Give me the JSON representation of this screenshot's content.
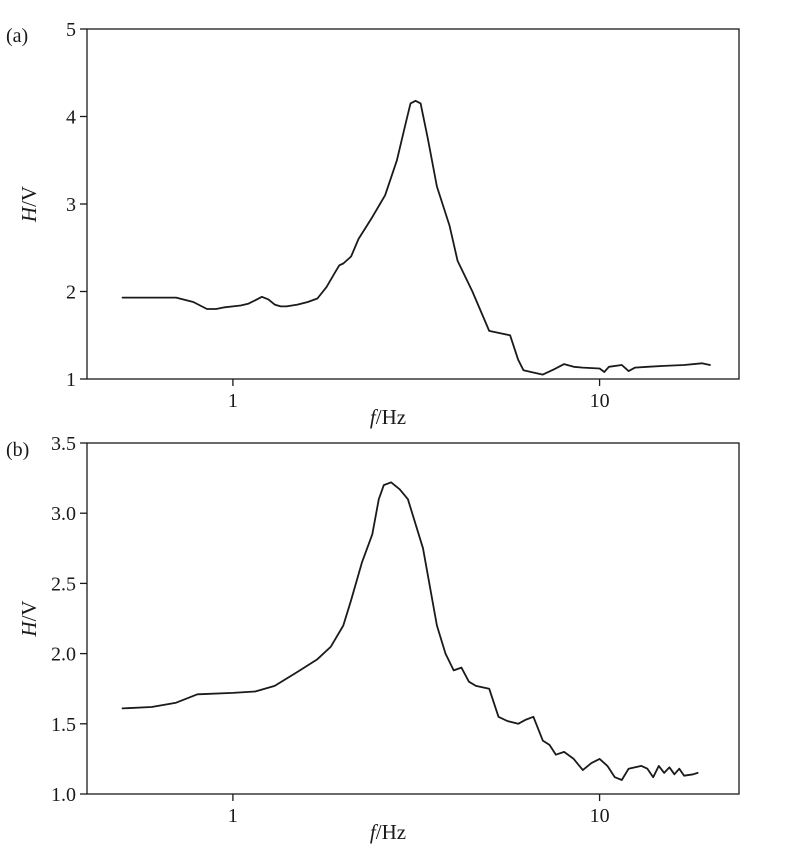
{
  "chart_data": [
    {
      "type": "line",
      "panel_label": "(a)",
      "xlabel_italic": "f",
      "xlabel_rest": "/Hz",
      "ylabel_italic": "H",
      "ylabel_rest": "/V",
      "xscale": "log",
      "xlim": [
        0.4,
        24
      ],
      "ylim": [
        1,
        5
      ],
      "xticks": [
        1,
        10
      ],
      "xtick_labels": [
        "1",
        "10"
      ],
      "yticks": [
        1,
        2,
        3,
        4,
        5
      ],
      "ytick_labels": [
        "1",
        "2",
        "3",
        "4",
        "5"
      ],
      "grid": false,
      "series": [
        {
          "x": [
            0.5,
            0.6,
            0.7,
            0.78,
            0.85,
            0.9,
            0.95,
            1.0,
            1.05,
            1.1,
            1.15,
            1.2,
            1.25,
            1.3,
            1.35,
            1.4,
            1.5,
            1.6,
            1.7,
            1.8,
            1.9,
            1.95,
            2.0,
            2.1,
            2.2,
            2.4,
            2.6,
            2.8,
            2.95,
            3.05,
            3.15,
            3.25,
            3.4,
            3.6,
            3.9,
            4.1,
            4.5,
            5.0,
            5.4,
            5.7,
            6.0,
            6.2,
            6.5,
            7.0,
            7.5,
            8.0,
            8.5,
            9.0,
            10.0,
            10.3,
            10.6,
            11.5,
            12.0,
            12.5,
            13.5,
            15.0,
            17.0,
            19.0,
            20.0
          ],
          "y": [
            1.93,
            1.93,
            1.93,
            1.88,
            1.8,
            1.8,
            1.82,
            1.83,
            1.84,
            1.86,
            1.9,
            1.94,
            1.91,
            1.85,
            1.83,
            1.83,
            1.85,
            1.88,
            1.92,
            2.05,
            2.22,
            2.3,
            2.32,
            2.4,
            2.6,
            2.85,
            3.1,
            3.5,
            3.9,
            4.15,
            4.18,
            4.15,
            3.75,
            3.2,
            2.75,
            2.35,
            2.0,
            1.55,
            1.52,
            1.5,
            1.22,
            1.1,
            1.08,
            1.05,
            1.11,
            1.17,
            1.14,
            1.13,
            1.12,
            1.08,
            1.14,
            1.16,
            1.09,
            1.13,
            1.14,
            1.15,
            1.16,
            1.18,
            1.16
          ]
        }
      ]
    },
    {
      "type": "line",
      "panel_label": "(b)",
      "xlabel_italic": "f",
      "xlabel_rest": "/Hz",
      "ylabel_italic": "H",
      "ylabel_rest": "/V",
      "xscale": "log",
      "xlim": [
        0.4,
        24
      ],
      "ylim": [
        1.0,
        3.5
      ],
      "xticks": [
        1,
        10
      ],
      "xtick_labels": [
        "1",
        "10"
      ],
      "yticks": [
        1.0,
        1.5,
        2.0,
        2.5,
        3.0,
        3.5
      ],
      "ytick_labels": [
        "1.0",
        "1.5",
        "2.0",
        "2.5",
        "3.0",
        "3.5"
      ],
      "grid": false,
      "series": [
        {
          "x": [
            0.5,
            0.6,
            0.7,
            0.8,
            1.0,
            1.15,
            1.3,
            1.5,
            1.7,
            1.85,
            2.0,
            2.1,
            2.25,
            2.4,
            2.5,
            2.58,
            2.7,
            2.85,
            3.0,
            3.3,
            3.6,
            3.8,
            4.0,
            4.2,
            4.4,
            4.6,
            5.0,
            5.3,
            5.6,
            6.0,
            6.3,
            6.6,
            7.0,
            7.3,
            7.6,
            8.0,
            8.5,
            9.0,
            9.5,
            10.0,
            10.5,
            11.0,
            11.5,
            12.0,
            13.0,
            13.5,
            14.0,
            14.5,
            15.0,
            15.5,
            16.0,
            16.5,
            17.0,
            18.0,
            18.5
          ],
          "y": [
            1.61,
            1.62,
            1.65,
            1.71,
            1.72,
            1.73,
            1.77,
            1.87,
            1.96,
            2.05,
            2.2,
            2.38,
            2.65,
            2.85,
            3.1,
            3.2,
            3.22,
            3.17,
            3.1,
            2.75,
            2.2,
            2.0,
            1.88,
            1.9,
            1.8,
            1.77,
            1.75,
            1.55,
            1.52,
            1.5,
            1.53,
            1.55,
            1.38,
            1.35,
            1.28,
            1.3,
            1.25,
            1.17,
            1.22,
            1.25,
            1.2,
            1.12,
            1.1,
            1.18,
            1.2,
            1.18,
            1.12,
            1.2,
            1.15,
            1.19,
            1.14,
            1.18,
            1.13,
            1.14,
            1.15
          ]
        }
      ]
    }
  ]
}
